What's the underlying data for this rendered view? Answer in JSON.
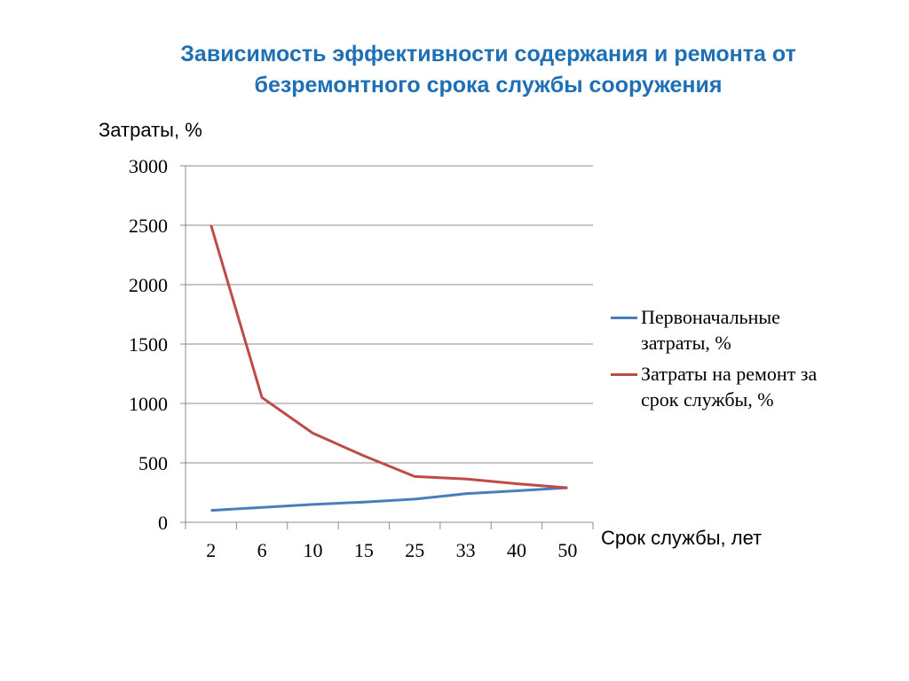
{
  "slide": {
    "title_line1": "Зависимость эффективности содержания и ремонта от",
    "title_line2": "безремонтного срока службы сооружения"
  },
  "chart_data": {
    "type": "line",
    "title": "Зависимость эффективности содержания и ремонта от безремонтного срока службы сооружения",
    "ylabel": "Затраты, %",
    "xlabel": "Срок службы, лет",
    "categories": [
      "2",
      "6",
      "10",
      "15",
      "25",
      "33",
      "40",
      "50"
    ],
    "ylim": [
      0,
      3000
    ],
    "yticks": [
      "0",
      "500",
      "1000",
      "1500",
      "2000",
      "2500",
      "3000"
    ],
    "grid": true,
    "legend_position": "right",
    "series": [
      {
        "name": "Первоначальные затраты, %",
        "name_line1": "Первоначальные",
        "name_line2": "затраты, %",
        "color": "#4a7ebb",
        "values": [
          100,
          125,
          150,
          170,
          195,
          240,
          265,
          290
        ]
      },
      {
        "name": "Затраты на ремонт за срок службы, %",
        "name_line1": "Затраты на ремонт за",
        "name_line2": "срок службы, %",
        "color": "#be4b48",
        "values": [
          2500,
          1050,
          750,
          560,
          385,
          365,
          325,
          290
        ]
      }
    ]
  }
}
